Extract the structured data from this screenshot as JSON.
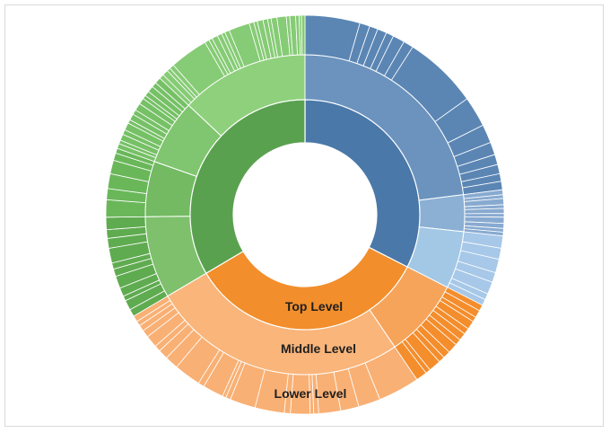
{
  "chart_data": {
    "type": "sunburst",
    "title": "",
    "rings": [
      "Top Level",
      "Middle Level",
      "Lower Level"
    ],
    "annotations": [
      {
        "text": "Top Level",
        "ring": "inner"
      },
      {
        "text": "Middle Level",
        "ring": "middle"
      },
      {
        "text": "Lower Level",
        "ring": "outer"
      }
    ],
    "top_level": [
      {
        "color": "#4a78a8",
        "value": 32.5
      },
      {
        "color": "#f28e2b",
        "value": 34.0
      },
      {
        "color": "#59a14f",
        "value": 33.5
      }
    ],
    "middle_level": [
      {
        "parent": 0,
        "color": "#6b93be",
        "value": 23.0
      },
      {
        "parent": 0,
        "color": "#8bb0d4",
        "value": 3.7
      },
      {
        "parent": 0,
        "color": "#a3c8e6",
        "value": 5.8
      },
      {
        "parent": 1,
        "color": "#f6a45a",
        "value": 8.0
      },
      {
        "parent": 1,
        "color": "#f9b57a",
        "value": 26.0
      },
      {
        "parent": 2,
        "color": "#7ec06c",
        "value": 8.3
      },
      {
        "parent": 2,
        "color": "#73ba62",
        "value": 5.6
      },
      {
        "parent": 2,
        "color": "#80c56f",
        "value": 6.6
      },
      {
        "parent": 2,
        "color": "#8fd07d",
        "value": 13.0
      }
    ],
    "lower_level": [
      {
        "parent": 0,
        "color": "#5b86b4",
        "values": [
          6.5,
          1.2,
          1.0,
          1.1,
          0.9,
          1.4,
          1.2,
          8.8,
          3.6,
          2.2,
          1.5,
          1.2,
          1.1,
          0.9,
          1.0
        ]
      },
      {
        "parent": 1,
        "color": "#88aad0",
        "values": [
          0.4,
          0.3,
          0.5,
          0.3,
          0.4,
          0.3,
          0.5,
          0.4,
          0.3,
          0.3
        ]
      },
      {
        "parent": 2,
        "color": "#a7c8e8",
        "values": [
          1.0,
          0.9,
          1.1,
          0.8,
          1.0,
          0.5,
          0.5
        ]
      },
      {
        "parent": 3,
        "color": "#f48d2c",
        "values": [
          0.5,
          0.6,
          0.4,
          0.7,
          0.5,
          0.6,
          0.5,
          0.8,
          0.6,
          0.5,
          1.0,
          0.4,
          0.9
        ]
      },
      {
        "parent": 4,
        "color": "#f9b074",
        "values": [
          3.4,
          1.8,
          1.5,
          1.8,
          0.4,
          0.3,
          1.6,
          0.5,
          2.4,
          2.1,
          0.4,
          0.3,
          1.7,
          0.5,
          2.2,
          1.1,
          0.8,
          0.5,
          1.0,
          0.6,
          0.5,
          0.4,
          0.5
        ]
      },
      {
        "parent": 5,
        "color": "#5fab50",
        "values": [
          0.6,
          0.8,
          0.4,
          0.7,
          1.0,
          0.6,
          0.5,
          1.2,
          0.8,
          0.7,
          1.0
        ]
      },
      {
        "parent": 6,
        "color": "#6ab75a",
        "values": [
          1.4,
          0.9,
          1.2,
          1.1,
          0.6,
          0.4
        ]
      },
      {
        "parent": 7,
        "color": "#76c066",
        "values": [
          0.4,
          0.3,
          0.5,
          0.4,
          0.6,
          0.3,
          0.5,
          0.4,
          0.6,
          0.5,
          0.3,
          0.4,
          0.5,
          0.4,
          0.5
        ]
      },
      {
        "parent": 8,
        "color": "#86cb75",
        "values": [
          0.4,
          0.5,
          0.3,
          0.4,
          3.3,
          0.4,
          0.3,
          0.5,
          0.4,
          0.3,
          0.4,
          1.8,
          0.4,
          0.3,
          0.5,
          0.4,
          0.3,
          0.5,
          0.8,
          0.3,
          0.5,
          0.3,
          0.2,
          0.3
        ]
      }
    ]
  }
}
